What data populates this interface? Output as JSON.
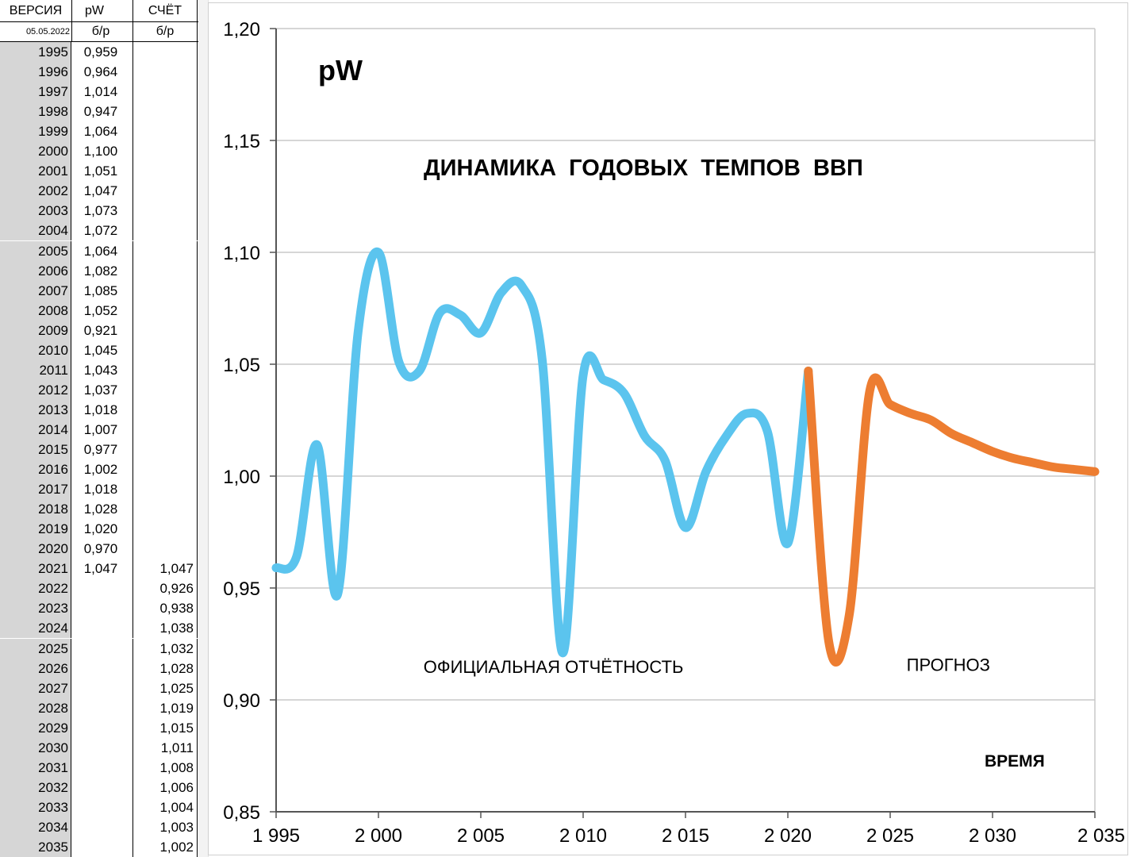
{
  "table": {
    "headers": {
      "col_year": "ВЕРСИЯ",
      "col_pw": "pW",
      "col_calc": "СЧЁТ",
      "version_date": "05.05.2022",
      "unit_pw": "б/р",
      "unit_calc": "б/р"
    },
    "rows": [
      {
        "year": "1995",
        "pw": "0,959",
        "calc": ""
      },
      {
        "year": "1996",
        "pw": "0,964",
        "calc": ""
      },
      {
        "year": "1997",
        "pw": "1,014",
        "calc": ""
      },
      {
        "year": "1998",
        "pw": "0,947",
        "calc": ""
      },
      {
        "year": "1999",
        "pw": "1,064",
        "calc": ""
      },
      {
        "year": "2000",
        "pw": "1,100",
        "calc": ""
      },
      {
        "year": "2001",
        "pw": "1,051",
        "calc": ""
      },
      {
        "year": "2002",
        "pw": "1,047",
        "calc": ""
      },
      {
        "year": "2003",
        "pw": "1,073",
        "calc": ""
      },
      {
        "year": "2004",
        "pw": "1,072",
        "calc": ""
      },
      {
        "year": "2005",
        "pw": "1,064",
        "calc": ""
      },
      {
        "year": "2006",
        "pw": "1,082",
        "calc": ""
      },
      {
        "year": "2007",
        "pw": "1,085",
        "calc": ""
      },
      {
        "year": "2008",
        "pw": "1,052",
        "calc": ""
      },
      {
        "year": "2009",
        "pw": "0,921",
        "calc": ""
      },
      {
        "year": "2010",
        "pw": "1,045",
        "calc": ""
      },
      {
        "year": "2011",
        "pw": "1,043",
        "calc": ""
      },
      {
        "year": "2012",
        "pw": "1,037",
        "calc": ""
      },
      {
        "year": "2013",
        "pw": "1,018",
        "calc": ""
      },
      {
        "year": "2014",
        "pw": "1,007",
        "calc": ""
      },
      {
        "year": "2015",
        "pw": "0,977",
        "calc": ""
      },
      {
        "year": "2016",
        "pw": "1,002",
        "calc": ""
      },
      {
        "year": "2017",
        "pw": "1,018",
        "calc": ""
      },
      {
        "year": "2018",
        "pw": "1,028",
        "calc": ""
      },
      {
        "year": "2019",
        "pw": "1,020",
        "calc": ""
      },
      {
        "year": "2020",
        "pw": "0,970",
        "calc": ""
      },
      {
        "year": "2021",
        "pw": "1,047",
        "calc": "1,047"
      },
      {
        "year": "2022",
        "pw": "",
        "calc": "0,926"
      },
      {
        "year": "2023",
        "pw": "",
        "calc": "0,938"
      },
      {
        "year": "2024",
        "pw": "",
        "calc": "1,038"
      },
      {
        "year": "2025",
        "pw": "",
        "calc": "1,032"
      },
      {
        "year": "2026",
        "pw": "",
        "calc": "1,028"
      },
      {
        "year": "2027",
        "pw": "",
        "calc": "1,025"
      },
      {
        "year": "2028",
        "pw": "",
        "calc": "1,019"
      },
      {
        "year": "2029",
        "pw": "",
        "calc": "1,015"
      },
      {
        "year": "2030",
        "pw": "",
        "calc": "1,011"
      },
      {
        "year": "2031",
        "pw": "",
        "calc": "1,008"
      },
      {
        "year": "2032",
        "pw": "",
        "calc": "1,006"
      },
      {
        "year": "2033",
        "pw": "",
        "calc": "1,004"
      },
      {
        "year": "2034",
        "pw": "",
        "calc": "1,003"
      },
      {
        "year": "2035",
        "pw": "",
        "calc": "1,002"
      }
    ]
  },
  "chart_data": {
    "type": "line",
    "title": "ДИНАМИКА  ГОДОВЫХ  ТЕМПОВ  ВВП",
    "corner_label": "pW",
    "xlabel": "ВРЕМЯ",
    "ylabel": "",
    "xlim": [
      1995,
      2035
    ],
    "ylim": [
      0.85,
      1.2
    ],
    "x_ticks": [
      1995,
      2000,
      2005,
      2010,
      2015,
      2020,
      2025,
      2030,
      2035
    ],
    "x_tick_labels": [
      "1 995",
      "2 000",
      "2 005",
      "2 010",
      "2 015",
      "2 020",
      "2 025",
      "2 030",
      "2 035"
    ],
    "y_ticks": [
      0.85,
      0.9,
      0.95,
      1.0,
      1.05,
      1.1,
      1.15,
      1.2
    ],
    "y_tick_labels": [
      "0,85",
      "0,90",
      "0,95",
      "1,00",
      "1,05",
      "1,10",
      "1,15",
      "1,20"
    ],
    "grid": "horizontal",
    "series": [
      {
        "color": "#5bc4ee",
        "x": [
          1995,
          1996,
          1997,
          1998,
          1999,
          2000,
          2001,
          2002,
          2003,
          2004,
          2005,
          2006,
          2007,
          2008,
          2009,
          2010,
          2011,
          2012,
          2013,
          2014,
          2015,
          2016,
          2017,
          2018,
          2019,
          2020,
          2021
        ],
        "y": [
          0.959,
          0.964,
          1.014,
          0.947,
          1.064,
          1.1,
          1.051,
          1.047,
          1.073,
          1.072,
          1.064,
          1.082,
          1.085,
          1.052,
          0.921,
          1.045,
          1.043,
          1.037,
          1.018,
          1.007,
          0.977,
          1.002,
          1.018,
          1.028,
          1.02,
          0.97,
          1.047
        ]
      },
      {
        "color": "#ed7d31",
        "x": [
          2021,
          2022,
          2023,
          2024,
          2025,
          2026,
          2027,
          2028,
          2029,
          2030,
          2031,
          2032,
          2033,
          2034,
          2035
        ],
        "y": [
          1.047,
          0.926,
          0.938,
          1.038,
          1.032,
          1.028,
          1.025,
          1.019,
          1.015,
          1.011,
          1.008,
          1.006,
          1.004,
          1.003,
          1.002
        ]
      }
    ],
    "annotations": [
      {
        "text": "ОФИЦИАЛЬНАЯ  ОТЧЁТНОСТЬ",
        "x": 2002.2,
        "y": 0.912
      },
      {
        "text": "ПРОГНОЗ",
        "x": 2025.8,
        "y": 0.913
      }
    ]
  }
}
